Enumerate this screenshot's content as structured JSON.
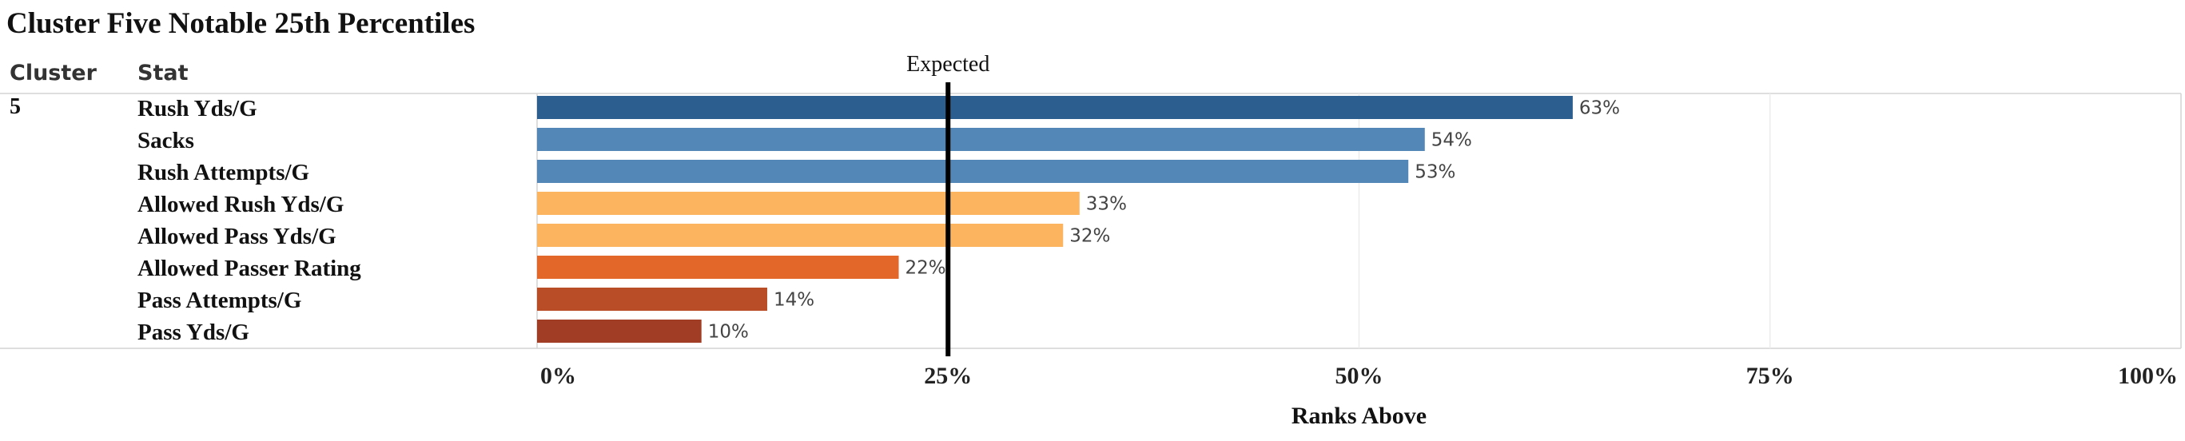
{
  "chart_data": {
    "type": "bar",
    "orientation": "horizontal",
    "title": "Cluster Five Notable 25th Percentiles",
    "column_headers": [
      "Cluster",
      "Stat"
    ],
    "cluster": "5",
    "categories": [
      "Rush Yds/G",
      "Sacks",
      "Rush Attempts/G",
      "Allowed Rush Yds/G",
      "Allowed Pass Yds/G",
      "Allowed Passer Rating",
      "Pass Attempts/G",
      "Pass Yds/G"
    ],
    "values": [
      63,
      54,
      53,
      33,
      32,
      22,
      14,
      10
    ],
    "value_labels": [
      "63%",
      "54%",
      "53%",
      "33%",
      "32%",
      "22%",
      "14%",
      "10%"
    ],
    "colors": [
      "#2c5f8f",
      "#5287b8",
      "#5287b8",
      "#fcb45e",
      "#fcb45e",
      "#e4672a",
      "#b84d27",
      "#a13d24"
    ],
    "xlabel": "Ranks Above",
    "xlim": [
      0,
      100
    ],
    "x_ticks": [
      0,
      25,
      50,
      75,
      100
    ],
    "x_tick_labels": [
      "0%",
      "25%",
      "50%",
      "75%",
      "100%"
    ],
    "reference_line": {
      "value": 25,
      "label": "Expected",
      "color": "#000000"
    },
    "grid": true
  }
}
